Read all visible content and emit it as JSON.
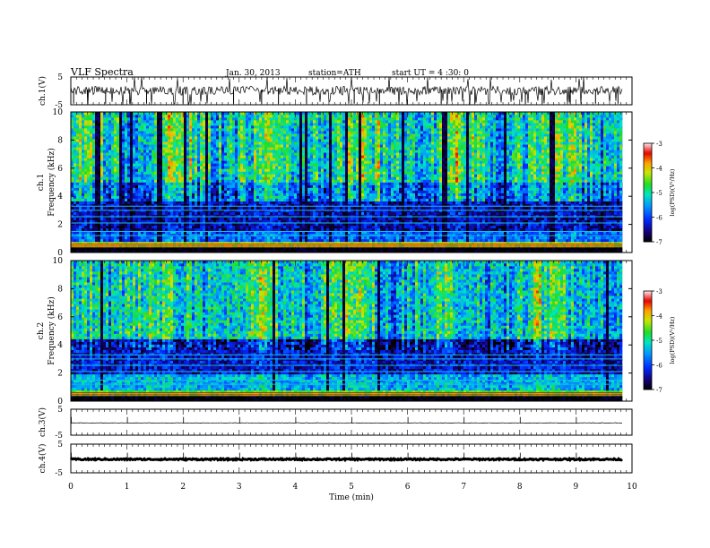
{
  "header": {
    "title": "VLF Spectra",
    "date": "Jan. 30, 2013",
    "station": "station=ATH",
    "start_ut": "start UT = 4 :30: 0"
  },
  "chart_data": [
    {
      "type": "line",
      "name": "ch1-waveform",
      "ylabel": "ch.1(V)",
      "yticks": [
        "5",
        "-5"
      ],
      "ylim": [
        -5,
        5
      ],
      "xlim": [
        0,
        10
      ],
      "x_end": 9.83,
      "baseline": 0.1,
      "spike_min": -5,
      "spike_max": 5
    },
    {
      "type": "heatmap",
      "name": "ch1-spectrogram",
      "ylabel": "ch.1 Frequency (kHz)",
      "yticks": [
        "0",
        "2",
        "4",
        "6",
        "8",
        "10"
      ],
      "ylim": [
        0,
        10
      ],
      "xlim": [
        0,
        10
      ],
      "x_end": 9.83,
      "colorbar": {
        "label": "log(PSD)(V²/Hz)",
        "ticks": [
          "-3",
          "-4",
          "-5",
          "-6",
          "-7"
        ],
        "range": [
          -7,
          -3
        ]
      },
      "bands": [
        {
          "f_min": 0.0,
          "f_max": 0.3,
          "log_psd": -7.0
        },
        {
          "f_min": 0.3,
          "f_max": 0.7,
          "log_psd": -4.3
        },
        {
          "f_min": 0.7,
          "f_max": 1.6,
          "log_psd": -5.8
        },
        {
          "f_min": 1.6,
          "f_max": 3.6,
          "log_psd": -6.4
        },
        {
          "f_min": 3.6,
          "f_max": 5.0,
          "log_psd": -5.6
        },
        {
          "f_min": 5.0,
          "f_max": 10.0,
          "log_psd": -5.0
        }
      ]
    },
    {
      "type": "heatmap",
      "name": "ch2-spectrogram",
      "ylabel": "ch.2 Frequency (kHz)",
      "yticks": [
        "0",
        "2",
        "4",
        "6",
        "8",
        "10"
      ],
      "ylim": [
        0,
        10
      ],
      "xlim": [
        0,
        10
      ],
      "x_end": 9.83,
      "colorbar": {
        "label": "log(PSD)(V²/Hz)",
        "ticks": [
          "-3",
          "-4",
          "-5",
          "-6",
          "-7"
        ],
        "range": [
          -7,
          -3
        ]
      },
      "bands": [
        {
          "f_min": 0.0,
          "f_max": 0.3,
          "log_psd": -7.0
        },
        {
          "f_min": 0.3,
          "f_max": 0.7,
          "log_psd": -4.5
        },
        {
          "f_min": 0.7,
          "f_max": 2.0,
          "log_psd": -5.4
        },
        {
          "f_min": 2.0,
          "f_max": 4.5,
          "log_psd": -6.3
        },
        {
          "f_min": 4.5,
          "f_max": 10.0,
          "log_psd": -5.1
        }
      ]
    },
    {
      "type": "line",
      "name": "ch3-waveform",
      "ylabel": "ch.3(V)",
      "yticks": [
        "5",
        "-5"
      ],
      "ylim": [
        -5,
        5
      ],
      "xlim": [
        0,
        10
      ],
      "x_end": 9.83,
      "baseline": -0.3
    },
    {
      "type": "line",
      "name": "ch4-waveform",
      "ylabel": "ch.4(V)",
      "yticks": [
        "5",
        "-5"
      ],
      "ylim": [
        -5,
        5
      ],
      "xlim": [
        0,
        10
      ],
      "x_end": 9.83,
      "baseline": -0.3
    }
  ],
  "xaxis": {
    "label": "Time (min)",
    "ticks": [
      "0",
      "1",
      "2",
      "3",
      "4",
      "5",
      "6",
      "7",
      "8",
      "9",
      "10"
    ],
    "range": [
      0,
      10
    ]
  },
  "colors": {
    "frame": "#000000",
    "trace": "#000000",
    "background": "#ffffff"
  }
}
